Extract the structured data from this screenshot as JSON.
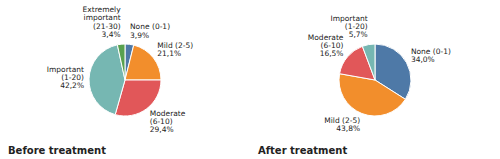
{
  "chart_data": [
    {
      "type": "pie",
      "title": "Before treatment",
      "categories": [
        "None (0-1)",
        "Mild (2-5)",
        "Moderate\n(6-10)",
        "Important\n(1-20)",
        "Extremely\nimportant\n(21-30)"
      ],
      "values": [
        3.9,
        21.1,
        29.4,
        42.2,
        3.4
      ],
      "value_labels": [
        "3,9%",
        "21,1%",
        "29,4%",
        "42,2%",
        "3,4%"
      ]
    },
    {
      "type": "pie",
      "title": "After treatment",
      "categories": [
        "None (0-1)",
        "Mild (2-5)",
        "Moderate\n(6-10)",
        "Important\n(1-20)"
      ],
      "values": [
        34.0,
        43.8,
        16.5,
        5.7
      ],
      "value_labels": [
        "34,0%",
        "43,8%",
        "16,5%",
        "5,7%"
      ]
    }
  ]
}
